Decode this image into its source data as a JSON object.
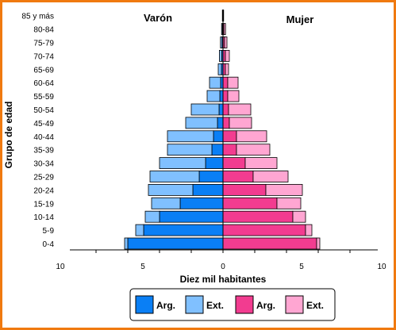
{
  "chart_data": {
    "type": "bar",
    "orientation": "horizontal-population-pyramid",
    "title_left": "Varón",
    "title_right": "Mujer",
    "xlabel": "Diez mil habitantes",
    "ylabel": "Grupo de edad",
    "xlim": [
      -10,
      10
    ],
    "x_tick_labels": [
      "10",
      "5",
      "0",
      "5",
      "10"
    ],
    "stacked": true,
    "categories": [
      "0-4",
      "5-9",
      "10-14",
      "15-19",
      "20-24",
      "25-29",
      "30-34",
      "35-39",
      "40-44",
      "45-49",
      "50-54",
      "55-59",
      "60-64",
      "65-69",
      "70-74",
      "75-79",
      "80-84",
      "85 y más"
    ],
    "series": [
      {
        "name": "Arg.",
        "side": "Varón",
        "color": "#0a7ff5",
        "values": [
          6.0,
          5.0,
          4.0,
          2.7,
          1.9,
          1.5,
          1.1,
          0.7,
          0.6,
          0.35,
          0.25,
          0.2,
          0.15,
          0.1,
          0.08,
          0.06,
          0.04,
          0.02
        ]
      },
      {
        "name": "Ext.",
        "side": "Varón",
        "color": "#80c0ff",
        "values": [
          0.2,
          0.5,
          0.9,
          1.8,
          2.8,
          3.1,
          2.9,
          2.8,
          2.9,
          2.0,
          1.75,
          0.8,
          0.7,
          0.2,
          0.15,
          0.1,
          0.05,
          0.02
        ]
      },
      {
        "name": "Arg.",
        "side": "Mujer",
        "color": "#f23c90",
        "values": [
          5.9,
          5.2,
          4.4,
          3.4,
          2.7,
          1.9,
          1.4,
          0.85,
          0.85,
          0.4,
          0.35,
          0.3,
          0.3,
          0.15,
          0.15,
          0.1,
          0.06,
          0.02
        ]
      },
      {
        "name": "Ext.",
        "side": "Mujer",
        "color": "#ffa6d2",
        "values": [
          0.2,
          0.4,
          0.8,
          1.5,
          2.3,
          2.2,
          2.0,
          2.1,
          1.9,
          1.4,
          1.4,
          0.7,
          0.65,
          0.2,
          0.25,
          0.15,
          0.1,
          0.02
        ]
      }
    ],
    "legend": {
      "placement": "bottom",
      "labels": [
        "Arg.",
        "Ext.",
        "Arg.",
        "Ext."
      ]
    },
    "border_color": "#f07a10"
  }
}
